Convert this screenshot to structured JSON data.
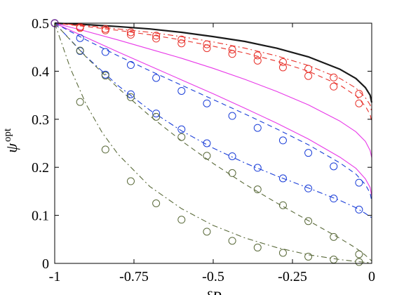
{
  "chart_data": {
    "type": "line",
    "title": "",
    "xlabel": "δP",
    "ylabel": "ψ",
    "ylabel_superscript": "opt",
    "xlim": [
      -1,
      0
    ],
    "ylim": [
      0,
      0.5
    ],
    "x_ticks": [
      -1,
      -0.75,
      -0.5,
      -0.25,
      0
    ],
    "x_tick_labels": [
      "-1",
      "-0.75",
      "-0.5",
      "-0.25",
      "0"
    ],
    "y_ticks": [
      0,
      0.1,
      0.2,
      0.3,
      0.4,
      0.5
    ],
    "y_tick_labels": [
      "0",
      "0.1",
      "0.2",
      "0.3",
      "0.4",
      "0.5"
    ],
    "grid": false,
    "legend": "none",
    "colors": {
      "black": "#1a1a1a",
      "red": "#e8312a",
      "magenta": "#e838e8",
      "blue": "#1a3ed8",
      "olive": "#5a6a3a",
      "purple": "#7a3fa0"
    },
    "series": [
      {
        "color": "black",
        "style": "solid",
        "markers": false,
        "width": 2.2,
        "x": [
          -1,
          -0.9,
          -0.8,
          -0.7,
          -0.6,
          -0.5,
          -0.4,
          -0.3,
          -0.2,
          -0.1,
          -0.05,
          -0.02,
          -0.005,
          0
        ],
        "y": [
          0.5,
          0.497,
          0.493,
          0.488,
          0.481,
          0.472,
          0.462,
          0.448,
          0.43,
          0.404,
          0.385,
          0.366,
          0.35,
          0.335
        ]
      },
      {
        "color": "red",
        "style": "dashdot",
        "markers": true,
        "x": [
          -1,
          -0.9,
          -0.8,
          -0.7,
          -0.6,
          -0.5,
          -0.4,
          -0.3,
          -0.2,
          -0.1,
          -0.05,
          -0.02,
          -0.005,
          0
        ],
        "y": [
          0.5,
          0.495,
          0.488,
          0.481,
          0.472,
          0.461,
          0.448,
          0.432,
          0.412,
          0.385,
          0.365,
          0.345,
          0.33,
          0.315
        ],
        "marker_x": [
          -1,
          -0.92,
          -0.84,
          -0.76,
          -0.68,
          -0.6,
          -0.52,
          -0.44,
          -0.36,
          -0.28,
          -0.2,
          -0.12,
          -0.04
        ],
        "marker_y": [
          0.5,
          0.492,
          0.488,
          0.481,
          0.474,
          0.466,
          0.456,
          0.445,
          0.433,
          0.419,
          0.405,
          0.387,
          0.353
        ]
      },
      {
        "color": "red",
        "style": "dashed",
        "markers": true,
        "x": [
          -1,
          -0.9,
          -0.8,
          -0.7,
          -0.6,
          -0.5,
          -0.4,
          -0.3,
          -0.2,
          -0.1,
          -0.05,
          -0.02,
          -0.005,
          0
        ],
        "y": [
          0.5,
          0.493,
          0.485,
          0.476,
          0.465,
          0.452,
          0.438,
          0.421,
          0.4,
          0.371,
          0.349,
          0.327,
          0.31,
          0.295
        ],
        "marker_x": [
          -1,
          -0.92,
          -0.84,
          -0.76,
          -0.68,
          -0.6,
          -0.52,
          -0.44,
          -0.36,
          -0.28,
          -0.2,
          -0.12,
          -0.04
        ],
        "marker_y": [
          0.5,
          0.49,
          0.485,
          0.476,
          0.468,
          0.458,
          0.448,
          0.436,
          0.422,
          0.408,
          0.39,
          0.368,
          0.333
        ]
      },
      {
        "color": "magenta",
        "style": "solid",
        "markers": false,
        "x": [
          -1,
          -0.9,
          -0.8,
          -0.7,
          -0.6,
          -0.5,
          -0.4,
          -0.3,
          -0.2,
          -0.1,
          -0.05,
          -0.02,
          -0.005,
          0
        ],
        "y": [
          0.5,
          0.483,
          0.465,
          0.446,
          0.427,
          0.406,
          0.383,
          0.358,
          0.33,
          0.296,
          0.274,
          0.254,
          0.235,
          0.22
        ]
      },
      {
        "color": "magenta",
        "style": "solid",
        "markers": false,
        "x": [
          -1,
          -0.9,
          -0.8,
          -0.7,
          -0.6,
          -0.5,
          -0.4,
          -0.3,
          -0.2,
          -0.1,
          -0.05,
          -0.02,
          -0.005,
          0
        ],
        "y": [
          0.5,
          0.47,
          0.44,
          0.411,
          0.382,
          0.353,
          0.323,
          0.292,
          0.259,
          0.221,
          0.198,
          0.176,
          0.158,
          0.14
        ]
      },
      {
        "color": "blue",
        "style": "dashed",
        "markers": true,
        "x": [
          -1,
          -0.9,
          -0.8,
          -0.7,
          -0.6,
          -0.5,
          -0.4,
          -0.3,
          -0.2,
          -0.1,
          -0.05,
          -0.02,
          -0.005,
          0
        ],
        "y": [
          0.5,
          0.465,
          0.432,
          0.401,
          0.371,
          0.341,
          0.311,
          0.28,
          0.247,
          0.209,
          0.186,
          0.164,
          0.146,
          0.13
        ],
        "marker_x": [
          -1,
          -0.92,
          -0.84,
          -0.76,
          -0.68,
          -0.6,
          -0.52,
          -0.44,
          -0.36,
          -0.28,
          -0.2,
          -0.12,
          -0.04
        ],
        "marker_y": [
          0.5,
          0.469,
          0.44,
          0.413,
          0.386,
          0.359,
          0.333,
          0.307,
          0.282,
          0.256,
          0.23,
          0.202,
          0.168
        ]
      },
      {
        "color": "blue",
        "style": "dashdot",
        "markers": true,
        "x": [
          -1,
          -0.9,
          -0.8,
          -0.7,
          -0.6,
          -0.5,
          -0.4,
          -0.3,
          -0.2,
          -0.1,
          -0.05,
          -0.02,
          0
        ],
        "y": [
          0.5,
          0.43,
          0.37,
          0.319,
          0.276,
          0.24,
          0.209,
          0.182,
          0.157,
          0.131,
          0.116,
          0.104,
          0.095
        ],
        "marker_x": [
          -1,
          -0.92,
          -0.84,
          -0.76,
          -0.68,
          -0.6,
          -0.52,
          -0.44,
          -0.36,
          -0.28,
          -0.2,
          -0.12,
          -0.04
        ],
        "marker_y": [
          0.5,
          0.442,
          0.393,
          0.352,
          0.312,
          0.279,
          0.25,
          0.223,
          0.199,
          0.177,
          0.156,
          0.135,
          0.112
        ]
      },
      {
        "color": "olive",
        "style": "dashed",
        "markers": true,
        "x": [
          -1,
          -0.9,
          -0.8,
          -0.7,
          -0.6,
          -0.5,
          -0.4,
          -0.3,
          -0.2,
          -0.1,
          -0.05,
          -0.02,
          0
        ],
        "y": [
          0.5,
          0.429,
          0.365,
          0.307,
          0.255,
          0.208,
          0.165,
          0.126,
          0.089,
          0.052,
          0.032,
          0.017,
          0.005
        ],
        "marker_x": [
          -1,
          -0.92,
          -0.84,
          -0.76,
          -0.68,
          -0.6,
          -0.52,
          -0.44,
          -0.36,
          -0.28,
          -0.2,
          -0.12,
          -0.04
        ],
        "marker_y": [
          0.5,
          0.443,
          0.391,
          0.346,
          0.305,
          0.263,
          0.224,
          0.188,
          0.154,
          0.121,
          0.088,
          0.055,
          0.019
        ]
      },
      {
        "color": "olive",
        "style": "dashdot",
        "markers": true,
        "x": [
          -1,
          -0.95,
          -0.9,
          -0.85,
          -0.8,
          -0.7,
          -0.6,
          -0.5,
          -0.4,
          -0.3,
          -0.2,
          -0.1,
          -0.05,
          0
        ],
        "y": [
          0.5,
          0.405,
          0.33,
          0.272,
          0.227,
          0.16,
          0.114,
          0.079,
          0.053,
          0.033,
          0.018,
          0.008,
          0.004,
          0.001
        ],
        "marker_x": [
          -0.92,
          -0.84,
          -0.76,
          -0.68,
          -0.6,
          -0.52,
          -0.44,
          -0.36,
          -0.28,
          -0.2,
          -0.12,
          -0.04
        ],
        "marker_y": [
          0.336,
          0.237,
          0.171,
          0.125,
          0.091,
          0.066,
          0.047,
          0.033,
          0.022,
          0.014,
          0.008,
          0.003
        ]
      }
    ],
    "start_marker": {
      "x": -1,
      "y": 0.5,
      "color": "purple"
    }
  }
}
